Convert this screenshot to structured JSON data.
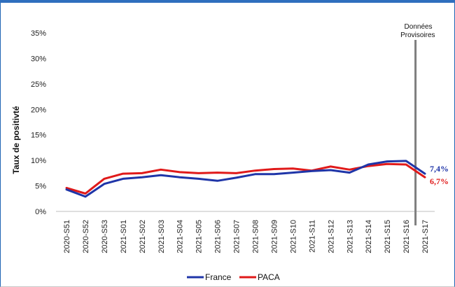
{
  "chart_data": {
    "type": "line",
    "title": "",
    "xlabel": "",
    "ylabel": "Taux de positivté",
    "categories": [
      "2020-S51",
      "2020-S52",
      "2020-S53",
      "2021-S01",
      "2021-S02",
      "2021-S03",
      "2021-S04",
      "2021-S05",
      "2021-S06",
      "2021-S07",
      "2021-S08",
      "2021-S09",
      "2021-S10",
      "2021-S11",
      "2021-S12",
      "2021-S13",
      "2021-S14",
      "2021-S15",
      "2021-S16",
      "2021-S17"
    ],
    "yticks": [
      "0%",
      "5%",
      "10%",
      "15%",
      "20%",
      "25%",
      "30%",
      "35%"
    ],
    "ylim": [
      0,
      35
    ],
    "series": [
      {
        "name": "France",
        "color": "#1f35a8",
        "values": [
          4.3,
          2.9,
          5.4,
          6.4,
          6.7,
          7.1,
          6.7,
          6.4,
          6.0,
          6.6,
          7.3,
          7.3,
          7.6,
          7.9,
          8.1,
          7.6,
          9.2,
          9.8,
          9.9,
          7.4
        ],
        "end_label": "7,4%"
      },
      {
        "name": "PACA",
        "color": "#e01a1a",
        "values": [
          4.6,
          3.5,
          6.4,
          7.4,
          7.5,
          8.2,
          7.7,
          7.5,
          7.6,
          7.5,
          8.0,
          8.3,
          8.4,
          8.0,
          8.8,
          8.2,
          8.9,
          9.3,
          9.2,
          6.7
        ],
        "end_label": "6,7%"
      }
    ],
    "annotation": {
      "line1": "Données",
      "line2": "Provisoires",
      "at_category": "2021-S16"
    },
    "grid": false,
    "legend": "bottom-center"
  }
}
